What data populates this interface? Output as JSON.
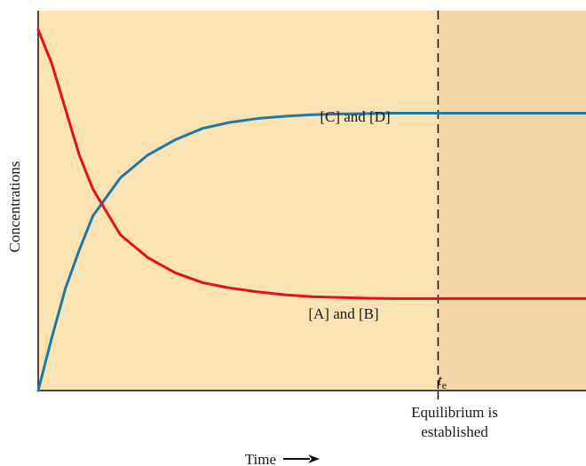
{
  "chart_data": {
    "type": "line",
    "title": "",
    "xlabel": "Time",
    "ylabel": "Concentrations",
    "x_arrow": "⟶",
    "xlim": [
      0,
      10
    ],
    "ylim": [
      0,
      1
    ],
    "grid": false,
    "te": 7.3,
    "te_label": "t",
    "te_sub": "e",
    "equilibrium_text_line1": "Equilibrium is",
    "equilibrium_text_line2": "established",
    "colors": {
      "pre_equilibrium_region": "#FBE3B4",
      "post_equilibrium_region": "#F4D5A8",
      "products": "#1E79A6",
      "reactants": "#E3101E",
      "dashed_line": "#111111",
      "axis": "#111111"
    },
    "series": [
      {
        "name": "[C] and [D]",
        "color": "#1E79A6",
        "x": [
          0,
          0.25,
          0.5,
          0.75,
          1,
          1.25,
          1.5,
          1.75,
          2,
          2.5,
          3,
          3.5,
          4,
          4.5,
          5,
          5.5,
          6,
          6.5,
          7,
          7.3,
          8,
          9,
          10
        ],
        "y": [
          0,
          0.14,
          0.27,
          0.37,
          0.46,
          0.51,
          0.56,
          0.59,
          0.62,
          0.66,
          0.69,
          0.706,
          0.716,
          0.722,
          0.726,
          0.728,
          0.729,
          0.73,
          0.73,
          0.73,
          0.73,
          0.73,
          0.73
        ]
      },
      {
        "name": "[A] and [B]",
        "color": "#E3101E",
        "x": [
          0,
          0.25,
          0.5,
          0.75,
          1,
          1.25,
          1.5,
          1.75,
          2,
          2.5,
          3,
          3.5,
          4,
          4.5,
          5,
          5.5,
          6,
          6.5,
          7,
          7.3,
          8,
          9,
          10
        ],
        "y": [
          0.95,
          0.86,
          0.74,
          0.62,
          0.53,
          0.47,
          0.41,
          0.38,
          0.35,
          0.31,
          0.284,
          0.27,
          0.26,
          0.252,
          0.247,
          0.245,
          0.243,
          0.242,
          0.242,
          0.242,
          0.242,
          0.242,
          0.242
        ]
      }
    ]
  }
}
